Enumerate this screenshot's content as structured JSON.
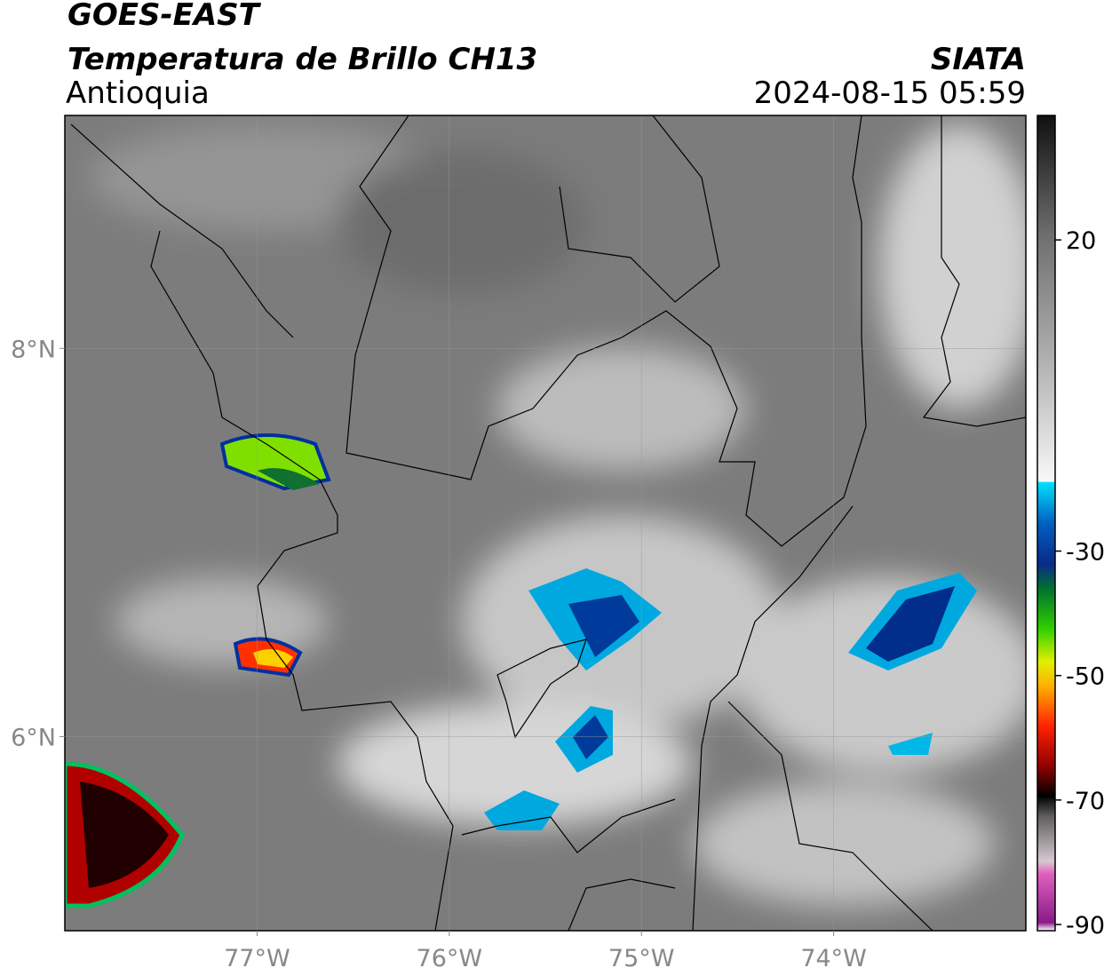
{
  "header": {
    "title": "GOES-EAST",
    "subtitle": "Temperatura de Brillo CH13",
    "region": "Antioquia",
    "source": "SIATA",
    "timestamp": "2024-08-15 05:59"
  },
  "map": {
    "xlim": [
      -78,
      -73
    ],
    "ylim": [
      5,
      9.2
    ],
    "xticks": [
      {
        "value": -77,
        "label": "77°W"
      },
      {
        "value": -76,
        "label": "76°W"
      },
      {
        "value": -75,
        "label": "75°W"
      },
      {
        "value": -74,
        "label": "74°W"
      }
    ],
    "yticks": [
      {
        "value": 8,
        "label": "8°N"
      },
      {
        "value": 6,
        "label": "6°N"
      }
    ],
    "grid": true
  },
  "colorbar": {
    "lim": [
      -91,
      40
    ],
    "ticks": [
      20,
      -30,
      -50,
      -70,
      -90
    ]
  }
}
